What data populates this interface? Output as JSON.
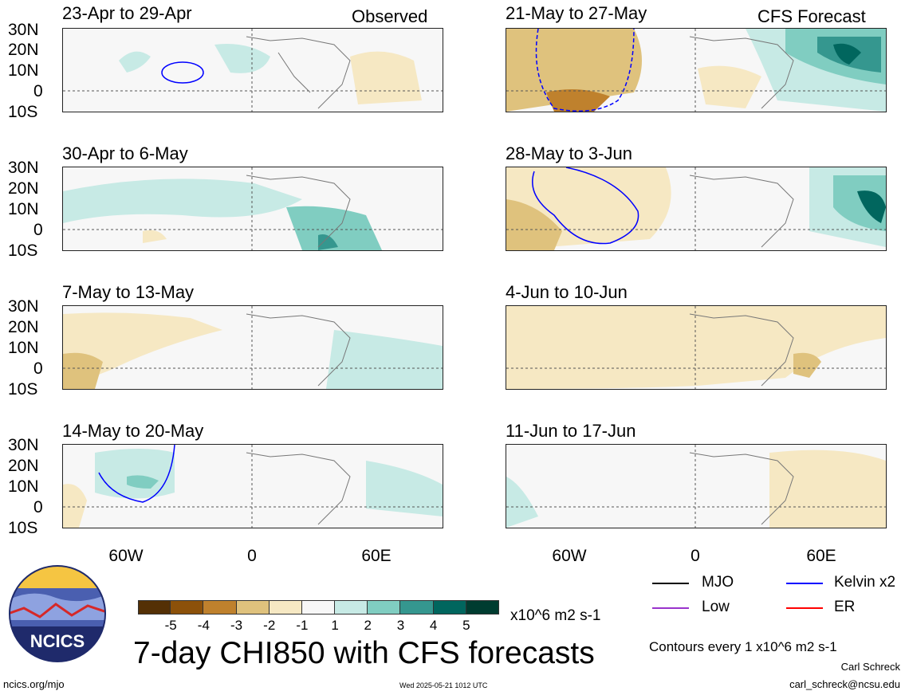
{
  "header": {
    "left_label": "Observed",
    "right_label": "CFS Forecast"
  },
  "panels_left": [
    {
      "period": "23-Apr to 29-Apr"
    },
    {
      "period": "30-Apr to 6-May"
    },
    {
      "period": "7-May to 13-May"
    },
    {
      "period": "14-May to 20-May"
    }
  ],
  "panels_right": [
    {
      "period": "21-May to 27-May"
    },
    {
      "period": "28-May to 3-Jun"
    },
    {
      "period": "4-Jun to 10-Jun"
    },
    {
      "period": "11-Jun to 17-Jun"
    }
  ],
  "lat_labels": [
    "30N",
    "20N",
    "10N",
    "0",
    "10S"
  ],
  "lon_labels": [
    "60W",
    "0",
    "60E"
  ],
  "colorbar": {
    "colors": [
      "#543005",
      "#8c510a",
      "#bf812d",
      "#dfc27d",
      "#f6e8c3",
      "#f7f7f7",
      "#c7eae5",
      "#80cdc1",
      "#35978f",
      "#01665e",
      "#003c30"
    ],
    "labels": [
      "-5",
      "-4",
      "-3",
      "-2",
      "-1",
      "1",
      "2",
      "3",
      "4",
      "5"
    ],
    "units": "x10^6 m2 s-1"
  },
  "legend": {
    "items": [
      {
        "label": "MJO",
        "color": "#000000"
      },
      {
        "label": "Kelvin x2",
        "color": "#0000ff"
      },
      {
        "label": "Low",
        "color": "#9933cc"
      },
      {
        "label": "ER",
        "color": "#ff0000"
      }
    ],
    "contours_note": "Contours every 1 x10^6 m2 s-1"
  },
  "main_title": "7-day CHI850 with CFS forecasts",
  "logo_text": "NCICS",
  "footer": {
    "url": "ncics.org/mjo",
    "timestamp": "Wed 2025-05-21 1012 UTC",
    "author": "Carl Schreck",
    "email": "carl_schreck@ncsu.edu"
  }
}
